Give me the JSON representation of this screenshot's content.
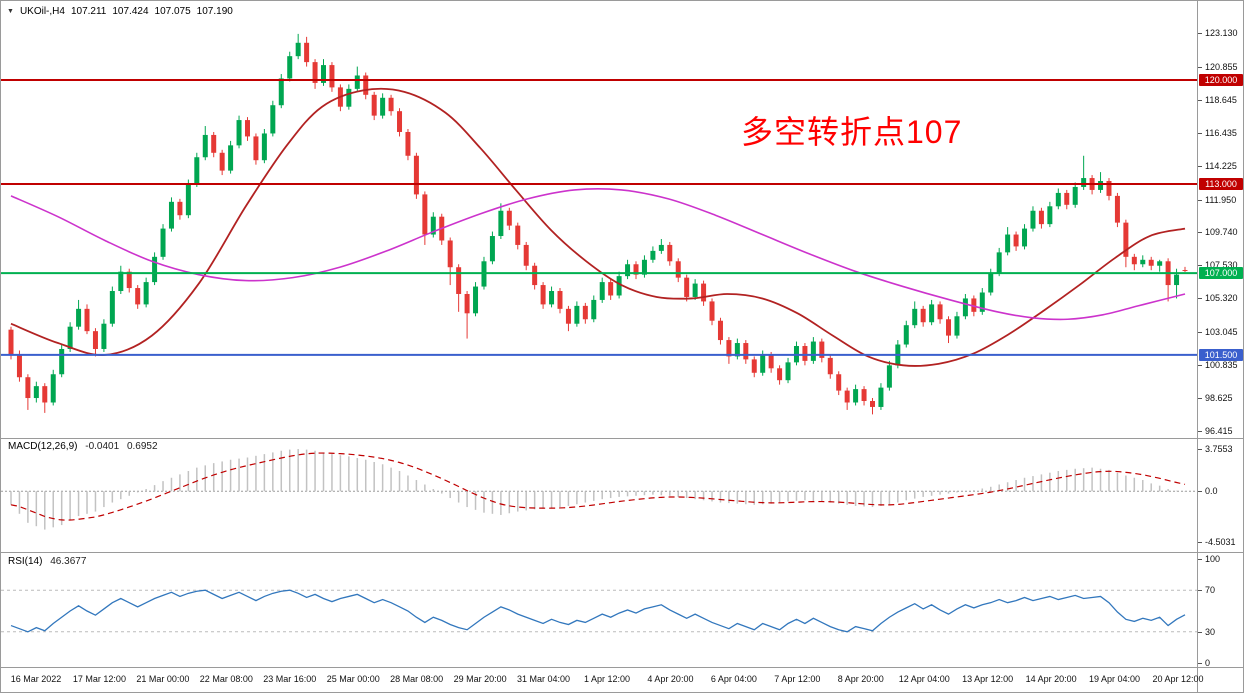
{
  "header": {
    "menu_arrow_icon": "▼",
    "symbol": "UKOil-,H4",
    "open": "107.211",
    "high": "107.424",
    "low": "107.075",
    "close": "107.190"
  },
  "annotation": {
    "text": "多空转折点107",
    "color": "#ff0000"
  },
  "price_axis": {
    "labels": [
      123.13,
      120.855,
      118.645,
      116.435,
      114.225,
      111.95,
      109.74,
      107.53,
      105.32,
      103.045,
      100.835,
      98.625,
      96.415
    ]
  },
  "hlines": [
    {
      "price": 120.0,
      "label": "120.000",
      "color": "#c00000"
    },
    {
      "price": 113.0,
      "label": "113.000",
      "color": "#c00000"
    },
    {
      "price": 107.0,
      "label": "107.000",
      "color": "#00b050"
    },
    {
      "price": 101.5,
      "label": "101.500",
      "color": "#3a5fcd"
    }
  ],
  "time_axis": {
    "labels": [
      "16 Mar 2022",
      "17 Mar 12:00",
      "21 Mar 00:00",
      "22 Mar 08:00",
      "23 Mar 16:00",
      "25 Mar 00:00",
      "28 Mar 08:00",
      "29 Mar 20:00",
      "31 Mar 04:00",
      "1 Apr 12:00",
      "4 Apr 20:00",
      "6 Apr 04:00",
      "7 Apr 12:00",
      "8 Apr 20:00",
      "12 Apr 04:00",
      "13 Apr 12:00",
      "14 Apr 20:00",
      "19 Apr 04:00",
      "20 Apr 12:00"
    ]
  },
  "macd": {
    "name": "MACD(12,26,9)",
    "value_main": "-0.0401",
    "value_signal": "0.6952",
    "axis_labels": [
      {
        "v": 3.7553,
        "text": "3.7553"
      },
      {
        "v": 0,
        "text": "0.0"
      },
      {
        "v": -4.5031,
        "text": "-4.5031"
      }
    ]
  },
  "rsi": {
    "name": "RSI(14)",
    "value": "46.3677",
    "axis_labels": [
      {
        "v": 100,
        "text": "100"
      },
      {
        "v": 70,
        "text": "70"
      },
      {
        "v": 30,
        "text": "30"
      },
      {
        "v": 0,
        "text": "0"
      }
    ],
    "levels": [
      70,
      30
    ]
  },
  "colors": {
    "up": "#00a651",
    "down": "#e53935",
    "ma_red": "#b22222",
    "ma_magenta": "#cc33cc",
    "macd_hist": "#c2c2c2",
    "macd_signal": "#c00000",
    "macd_zero": "#9a9a9a",
    "rsi": "#3277bd",
    "rsi_level": "#bbbbbb"
  },
  "chart_data": {
    "type": "candlestick",
    "symbol": "UKOil-",
    "timeframe": "H4",
    "ylim": [
      96.18,
      124.37
    ],
    "macd_ylim": [
      -5.39,
      4.73
    ],
    "rsi_ylim": [
      0,
      100
    ],
    "macd_signal_period": 9,
    "candles_ohlc": [
      [
        103.2,
        103.4,
        101.2,
        101.5
      ],
      [
        101.5,
        101.8,
        99.7,
        100.0
      ],
      [
        100.0,
        100.2,
        97.8,
        98.6
      ],
      [
        98.6,
        99.7,
        98.3,
        99.4
      ],
      [
        99.4,
        99.6,
        97.6,
        98.3
      ],
      [
        98.3,
        100.5,
        98.1,
        100.2
      ],
      [
        100.2,
        102.2,
        100.0,
        101.9
      ],
      [
        101.9,
        103.7,
        101.7,
        103.4
      ],
      [
        103.4,
        105.2,
        103.2,
        104.6
      ],
      [
        104.6,
        104.9,
        102.9,
        103.1
      ],
      [
        103.1,
        103.3,
        101.4,
        101.9
      ],
      [
        101.9,
        103.9,
        101.7,
        103.6
      ],
      [
        103.6,
        106.1,
        103.4,
        105.8
      ],
      [
        105.8,
        107.5,
        105.6,
        107.1
      ],
      [
        107.1,
        107.3,
        105.7,
        106.0
      ],
      [
        106.0,
        106.2,
        104.6,
        104.9
      ],
      [
        104.9,
        106.7,
        104.7,
        106.4
      ],
      [
        106.4,
        108.4,
        106.2,
        108.1
      ],
      [
        108.1,
        110.3,
        107.9,
        110.0
      ],
      [
        110.0,
        112.1,
        109.8,
        111.8
      ],
      [
        111.8,
        112.0,
        110.6,
        110.9
      ],
      [
        110.9,
        113.3,
        110.7,
        113.0
      ],
      [
        113.0,
        115.1,
        112.8,
        114.8
      ],
      [
        114.8,
        116.9,
        114.6,
        116.3
      ],
      [
        116.3,
        116.5,
        114.8,
        115.1
      ],
      [
        115.1,
        115.3,
        113.6,
        113.9
      ],
      [
        113.9,
        115.9,
        113.7,
        115.6
      ],
      [
        115.6,
        117.6,
        115.4,
        117.3
      ],
      [
        117.3,
        117.5,
        115.9,
        116.2
      ],
      [
        116.2,
        116.4,
        114.3,
        114.6
      ],
      [
        114.6,
        116.7,
        114.4,
        116.4
      ],
      [
        116.4,
        118.6,
        116.2,
        118.3
      ],
      [
        118.3,
        120.4,
        118.1,
        120.1
      ],
      [
        120.1,
        121.9,
        119.9,
        121.6
      ],
      [
        121.6,
        123.1,
        121.4,
        122.5
      ],
      [
        122.5,
        122.9,
        120.9,
        121.2
      ],
      [
        121.2,
        121.4,
        119.4,
        119.8
      ],
      [
        119.8,
        121.4,
        119.6,
        121.0
      ],
      [
        121.0,
        121.2,
        119.2,
        119.5
      ],
      [
        119.5,
        119.7,
        117.9,
        118.2
      ],
      [
        118.2,
        119.7,
        118.0,
        119.4
      ],
      [
        119.4,
        120.9,
        119.2,
        120.3
      ],
      [
        120.3,
        120.5,
        118.7,
        119.0
      ],
      [
        119.0,
        119.2,
        117.3,
        117.6
      ],
      [
        117.6,
        119.1,
        117.4,
        118.8
      ],
      [
        118.8,
        119.0,
        117.6,
        117.9
      ],
      [
        117.9,
        118.1,
        116.2,
        116.5
      ],
      [
        116.5,
        116.7,
        114.6,
        114.9
      ],
      [
        114.9,
        115.1,
        112.0,
        112.3
      ],
      [
        112.3,
        112.5,
        108.9,
        109.6
      ],
      [
        109.6,
        111.1,
        109.4,
        110.8
      ],
      [
        110.8,
        111.0,
        108.9,
        109.2
      ],
      [
        109.2,
        109.4,
        106.2,
        107.4
      ],
      [
        107.4,
        107.6,
        104.4,
        105.6
      ],
      [
        105.6,
        105.8,
        102.6,
        104.3
      ],
      [
        104.3,
        106.4,
        104.1,
        106.1
      ],
      [
        106.1,
        108.1,
        105.9,
        107.8
      ],
      [
        107.8,
        109.8,
        107.6,
        109.5
      ],
      [
        109.5,
        111.7,
        109.3,
        111.2
      ],
      [
        111.2,
        111.4,
        109.9,
        110.2
      ],
      [
        110.2,
        110.4,
        108.6,
        108.9
      ],
      [
        108.9,
        109.1,
        107.2,
        107.5
      ],
      [
        107.5,
        107.7,
        105.9,
        106.2
      ],
      [
        106.2,
        106.4,
        104.6,
        104.9
      ],
      [
        104.9,
        106.1,
        104.7,
        105.8
      ],
      [
        105.8,
        106.0,
        104.3,
        104.6
      ],
      [
        104.6,
        104.8,
        103.1,
        103.6
      ],
      [
        103.6,
        105.1,
        103.4,
        104.8
      ],
      [
        104.8,
        105.0,
        103.6,
        103.9
      ],
      [
        103.9,
        105.5,
        103.7,
        105.2
      ],
      [
        105.2,
        106.7,
        105.0,
        106.4
      ],
      [
        106.4,
        106.6,
        105.2,
        105.5
      ],
      [
        105.5,
        107.1,
        105.3,
        106.8
      ],
      [
        106.8,
        107.9,
        106.6,
        107.6
      ],
      [
        107.6,
        107.8,
        106.6,
        106.9
      ],
      [
        106.9,
        108.2,
        106.7,
        107.9
      ],
      [
        107.9,
        108.8,
        107.7,
        108.5
      ],
      [
        108.5,
        109.3,
        108.3,
        108.9
      ],
      [
        108.9,
        109.1,
        107.5,
        107.8
      ],
      [
        107.8,
        108.0,
        106.4,
        106.7
      ],
      [
        106.7,
        106.9,
        105.1,
        105.4
      ],
      [
        105.4,
        106.6,
        105.2,
        106.3
      ],
      [
        106.3,
        106.5,
        104.8,
        105.1
      ],
      [
        105.1,
        105.3,
        103.5,
        103.8
      ],
      [
        103.8,
        104.0,
        102.2,
        102.5
      ],
      [
        102.5,
        102.7,
        100.9,
        101.4
      ],
      [
        101.4,
        102.6,
        101.2,
        102.3
      ],
      [
        102.3,
        102.5,
        100.9,
        101.2
      ],
      [
        101.2,
        101.4,
        100.0,
        100.3
      ],
      [
        100.3,
        101.8,
        100.1,
        101.5
      ],
      [
        101.5,
        101.7,
        100.3,
        100.6
      ],
      [
        100.6,
        100.8,
        99.5,
        99.8
      ],
      [
        99.8,
        101.3,
        99.6,
        101.0
      ],
      [
        101.0,
        102.4,
        100.8,
        102.1
      ],
      [
        102.1,
        102.3,
        100.8,
        101.1
      ],
      [
        101.1,
        102.7,
        100.9,
        102.4
      ],
      [
        102.4,
        102.6,
        101.0,
        101.3
      ],
      [
        101.3,
        101.5,
        99.9,
        100.2
      ],
      [
        100.2,
        100.4,
        98.8,
        99.1
      ],
      [
        99.1,
        99.3,
        97.8,
        98.3
      ],
      [
        98.3,
        99.5,
        98.1,
        99.2
      ],
      [
        99.2,
        99.4,
        98.1,
        98.4
      ],
      [
        98.4,
        98.6,
        97.5,
        98.0
      ],
      [
        98.0,
        99.6,
        97.8,
        99.3
      ],
      [
        99.3,
        101.1,
        99.1,
        100.8
      ],
      [
        100.8,
        102.5,
        100.6,
        102.2
      ],
      [
        102.2,
        103.8,
        102.0,
        103.5
      ],
      [
        103.5,
        105.1,
        103.3,
        104.6
      ],
      [
        104.6,
        104.8,
        103.4,
        103.7
      ],
      [
        103.7,
        105.2,
        103.5,
        104.9
      ],
      [
        104.9,
        105.1,
        103.6,
        103.9
      ],
      [
        103.9,
        104.1,
        102.3,
        102.8
      ],
      [
        102.8,
        104.4,
        102.6,
        104.1
      ],
      [
        104.1,
        105.6,
        103.9,
        105.3
      ],
      [
        105.3,
        105.5,
        104.1,
        104.4
      ],
      [
        104.4,
        106.0,
        104.2,
        105.7
      ],
      [
        105.7,
        107.3,
        105.5,
        107.0
      ],
      [
        107.0,
        108.7,
        106.8,
        108.4
      ],
      [
        108.4,
        110.1,
        108.2,
        109.6
      ],
      [
        109.6,
        109.8,
        108.5,
        108.8
      ],
      [
        108.8,
        110.3,
        108.6,
        110.0
      ],
      [
        110.0,
        111.5,
        109.8,
        111.2
      ],
      [
        111.2,
        111.4,
        110.0,
        110.3
      ],
      [
        110.3,
        111.8,
        110.1,
        111.5
      ],
      [
        111.5,
        112.7,
        111.3,
        112.4
      ],
      [
        112.4,
        112.6,
        111.3,
        111.6
      ],
      [
        111.6,
        113.1,
        111.4,
        112.8
      ],
      [
        112.8,
        114.9,
        112.6,
        113.4
      ],
      [
        113.4,
        113.6,
        112.3,
        112.6
      ],
      [
        112.6,
        113.8,
        112.4,
        113.2
      ],
      [
        113.2,
        113.4,
        111.9,
        112.2
      ],
      [
        112.2,
        112.4,
        110.1,
        110.4
      ],
      [
        110.4,
        110.6,
        107.4,
        108.1
      ],
      [
        108.1,
        108.3,
        107.2,
        107.6
      ],
      [
        107.6,
        108.2,
        107.4,
        107.9
      ],
      [
        107.9,
        108.1,
        107.2,
        107.5
      ],
      [
        107.5,
        107.9,
        107.1,
        107.8
      ],
      [
        107.8,
        108.0,
        105.1,
        106.2
      ],
      [
        106.2,
        107.3,
        105.3,
        106.9
      ],
      [
        107.211,
        107.424,
        107.075,
        107.19
      ]
    ],
    "ma_red": [
      [
        0.0,
        103.6
      ],
      [
        0.04,
        102.3
      ],
      [
        0.08,
        101.5
      ],
      [
        0.12,
        102.8
      ],
      [
        0.16,
        106.3
      ],
      [
        0.2,
        111.5
      ],
      [
        0.235,
        115.6
      ],
      [
        0.265,
        118.2
      ],
      [
        0.3,
        119.3
      ],
      [
        0.335,
        119.2
      ],
      [
        0.37,
        117.8
      ],
      [
        0.4,
        115.4
      ],
      [
        0.43,
        112.6
      ],
      [
        0.46,
        109.9
      ],
      [
        0.49,
        107.8
      ],
      [
        0.52,
        106.2
      ],
      [
        0.55,
        105.4
      ],
      [
        0.58,
        105.3
      ],
      [
        0.61,
        105.6
      ],
      [
        0.64,
        105.3
      ],
      [
        0.67,
        104.3
      ],
      [
        0.7,
        102.8
      ],
      [
        0.73,
        101.4
      ],
      [
        0.76,
        100.8
      ],
      [
        0.79,
        100.9
      ],
      [
        0.82,
        101.6
      ],
      [
        0.85,
        102.9
      ],
      [
        0.88,
        104.5
      ],
      [
        0.91,
        106.2
      ],
      [
        0.94,
        108.0
      ],
      [
        0.97,
        109.5
      ],
      [
        1.0,
        110.0
      ]
    ],
    "ma_magenta": [
      [
        0.0,
        112.2
      ],
      [
        0.04,
        110.8
      ],
      [
        0.08,
        109.2
      ],
      [
        0.12,
        107.8
      ],
      [
        0.16,
        106.9
      ],
      [
        0.2,
        106.5
      ],
      [
        0.24,
        106.7
      ],
      [
        0.28,
        107.4
      ],
      [
        0.32,
        108.5
      ],
      [
        0.36,
        109.8
      ],
      [
        0.4,
        111.0
      ],
      [
        0.44,
        112.0
      ],
      [
        0.48,
        112.6
      ],
      [
        0.52,
        112.6
      ],
      [
        0.56,
        112.0
      ],
      [
        0.6,
        110.9
      ],
      [
        0.64,
        109.6
      ],
      [
        0.68,
        108.3
      ],
      [
        0.72,
        107.1
      ],
      [
        0.76,
        106.1
      ],
      [
        0.8,
        105.2
      ],
      [
        0.84,
        104.4
      ],
      [
        0.87,
        104.0
      ],
      [
        0.9,
        103.9
      ],
      [
        0.93,
        104.2
      ],
      [
        0.96,
        104.8
      ],
      [
        1.0,
        105.6
      ]
    ],
    "macd_values": [
      -1.2,
      -2.0,
      -2.8,
      -3.1,
      -3.4,
      -3.2,
      -3.0,
      -2.6,
      -2.2,
      -2.0,
      -1.8,
      -1.4,
      -1.0,
      -0.7,
      -0.4,
      -0.1,
      0.2,
      0.55,
      0.9,
      1.2,
      1.5,
      1.8,
      2.1,
      2.3,
      2.5,
      2.65,
      2.8,
      2.9,
      3.0,
      3.15,
      3.3,
      3.45,
      3.6,
      3.7,
      3.75,
      3.7,
      3.6,
      3.45,
      3.3,
      3.2,
      3.1,
      2.95,
      2.8,
      2.6,
      2.4,
      2.1,
      1.8,
      1.4,
      1.0,
      0.6,
      0.2,
      -0.2,
      -0.6,
      -1.0,
      -1.4,
      -1.65,
      -1.9,
      -2.0,
      -2.1,
      -1.95,
      -1.8,
      -1.7,
      -1.6,
      -1.55,
      -1.5,
      -1.4,
      -1.3,
      -1.15,
      -1.0,
      -0.85,
      -0.7,
      -0.6,
      -0.5,
      -0.45,
      -0.4,
      -0.35,
      -0.3,
      -0.35,
      -0.4,
      -0.5,
      -0.6,
      -0.7,
      -0.8,
      -0.9,
      -1.0,
      -1.05,
      -1.1,
      -1.15,
      -1.2,
      -1.15,
      -1.1,
      -1.0,
      -0.9,
      -0.85,
      -0.8,
      -0.85,
      -0.9,
      -1.0,
      -1.1,
      -1.2,
      -1.3,
      -1.35,
      -1.4,
      -1.3,
      -1.2,
      -1.0,
      -0.8,
      -0.65,
      -0.5,
      -0.4,
      -0.3,
      -0.2,
      -0.1,
      0.0,
      0.1,
      0.25,
      0.4,
      0.6,
      0.8,
      1.0,
      1.2,
      1.35,
      1.5,
      1.65,
      1.8,
      1.9,
      2.0,
      2.05,
      2.1,
      2.0,
      1.9,
      1.65,
      1.4,
      1.2,
      1.0,
      0.7,
      0.5,
      0.2,
      0.05,
      -0.0401
    ],
    "rsi_values": [
      36,
      33,
      30,
      34,
      31,
      38,
      44,
      50,
      55,
      50,
      46,
      52,
      58,
      62,
      58,
      54,
      58,
      62,
      65,
      68,
      64,
      67,
      69,
      70,
      66,
      62,
      65,
      68,
      64,
      60,
      64,
      67,
      69,
      70,
      67,
      63,
      66,
      62,
      59,
      62,
      64,
      66,
      62,
      58,
      61,
      58,
      54,
      50,
      44,
      39,
      44,
      41,
      37,
      34,
      32,
      38,
      44,
      49,
      54,
      51,
      47,
      44,
      41,
      38,
      42,
      39,
      37,
      41,
      39,
      43,
      47,
      44,
      48,
      51,
      48,
      52,
      54,
      56,
      51,
      47,
      43,
      47,
      43,
      39,
      36,
      33,
      38,
      35,
      32,
      38,
      35,
      32,
      38,
      42,
      38,
      43,
      39,
      35,
      32,
      30,
      35,
      33,
      31,
      38,
      44,
      49,
      53,
      57,
      52,
      56,
      51,
      47,
      52,
      56,
      53,
      56,
      58,
      61,
      58,
      60,
      63,
      60,
      62,
      64,
      61,
      63,
      65,
      62,
      63,
      64,
      58,
      49,
      42,
      40,
      43,
      41,
      44,
      36,
      42,
      46.37
    ]
  }
}
